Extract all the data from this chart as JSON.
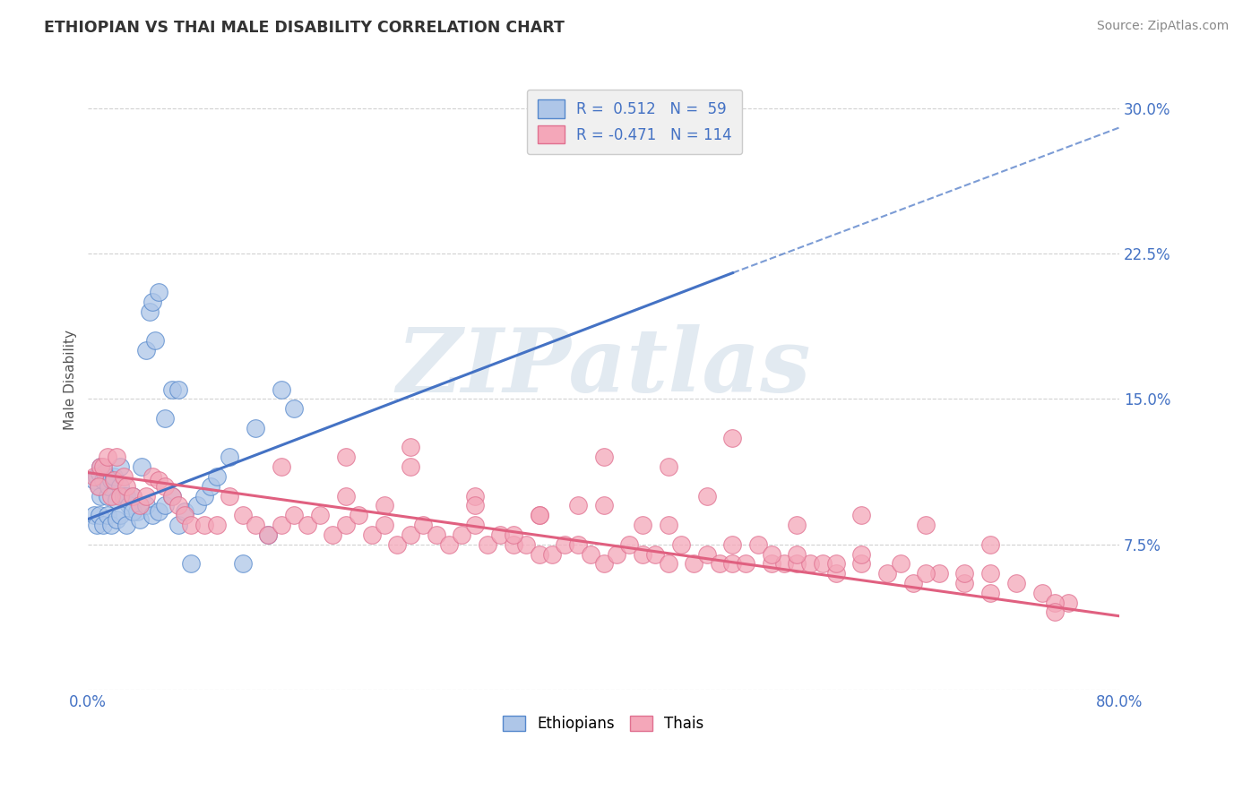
{
  "title": "ETHIOPIAN VS THAI MALE DISABILITY CORRELATION CHART",
  "source": "Source: ZipAtlas.com",
  "ylabel": "Male Disability",
  "xlim": [
    0.0,
    0.8
  ],
  "ylim": [
    0.0,
    0.32
  ],
  "yticks": [
    0.0,
    0.075,
    0.15,
    0.225,
    0.3
  ],
  "ytick_labels": [
    "",
    "7.5%",
    "15.0%",
    "22.5%",
    "30.0%"
  ],
  "xticks": [
    0.0,
    0.8
  ],
  "xtick_labels": [
    "0.0%",
    "80.0%"
  ],
  "ethiopian_color": "#aec6e8",
  "ethiopian_edge_color": "#5588cc",
  "thai_color": "#f4a7b9",
  "thai_edge_color": "#e07090",
  "ethiopian_line_color": "#4472c4",
  "thai_line_color": "#e06080",
  "background_color": "#ffffff",
  "grid_color": "#cccccc",
  "watermark_text": "ZIPatlas",
  "legend_box_color": "#f0f0f0",
  "title_color": "#333333",
  "axis_label_color": "#4472c4",
  "source_color": "#888888",
  "ethiopian_scatter_x": [
    0.005,
    0.007,
    0.008,
    0.009,
    0.01,
    0.01,
    0.012,
    0.013,
    0.015,
    0.016,
    0.018,
    0.02,
    0.022,
    0.025,
    0.025,
    0.028,
    0.03,
    0.032,
    0.035,
    0.038,
    0.04,
    0.042,
    0.045,
    0.048,
    0.05,
    0.052,
    0.055,
    0.06,
    0.065,
    0.07,
    0.005,
    0.007,
    0.009,
    0.012,
    0.015,
    0.018,
    0.022,
    0.025,
    0.03,
    0.035,
    0.04,
    0.045,
    0.05,
    0.055,
    0.06,
    0.065,
    0.07,
    0.075,
    0.08,
    0.085,
    0.09,
    0.095,
    0.1,
    0.11,
    0.12,
    0.13,
    0.14,
    0.15,
    0.16
  ],
  "ethiopian_scatter_y": [
    0.108,
    0.11,
    0.105,
    0.112,
    0.115,
    0.1,
    0.108,
    0.112,
    0.1,
    0.105,
    0.108,
    0.11,
    0.098,
    0.115,
    0.105,
    0.1,
    0.1,
    0.095,
    0.1,
    0.092,
    0.095,
    0.115,
    0.175,
    0.195,
    0.2,
    0.18,
    0.205,
    0.14,
    0.155,
    0.155,
    0.09,
    0.085,
    0.09,
    0.085,
    0.09,
    0.085,
    0.088,
    0.09,
    0.085,
    0.092,
    0.088,
    0.095,
    0.09,
    0.092,
    0.095,
    0.1,
    0.085,
    0.092,
    0.065,
    0.095,
    0.1,
    0.105,
    0.11,
    0.12,
    0.065,
    0.135,
    0.08,
    0.155,
    0.145
  ],
  "thai_scatter_x": [
    0.005,
    0.008,
    0.01,
    0.012,
    0.015,
    0.018,
    0.02,
    0.022,
    0.025,
    0.028,
    0.03,
    0.035,
    0.04,
    0.045,
    0.05,
    0.055,
    0.06,
    0.065,
    0.07,
    0.075,
    0.08,
    0.09,
    0.1,
    0.11,
    0.12,
    0.13,
    0.14,
    0.15,
    0.16,
    0.17,
    0.18,
    0.19,
    0.2,
    0.21,
    0.22,
    0.23,
    0.24,
    0.25,
    0.26,
    0.27,
    0.28,
    0.29,
    0.3,
    0.31,
    0.32,
    0.33,
    0.34,
    0.35,
    0.36,
    0.37,
    0.38,
    0.39,
    0.4,
    0.41,
    0.42,
    0.43,
    0.44,
    0.45,
    0.46,
    0.47,
    0.48,
    0.49,
    0.5,
    0.51,
    0.52,
    0.53,
    0.54,
    0.55,
    0.56,
    0.57,
    0.58,
    0.6,
    0.62,
    0.64,
    0.66,
    0.68,
    0.7,
    0.72,
    0.74,
    0.76,
    0.2,
    0.25,
    0.3,
    0.35,
    0.4,
    0.45,
    0.5,
    0.55,
    0.6,
    0.65,
    0.7,
    0.75,
    0.15,
    0.2,
    0.25,
    0.3,
    0.35,
    0.4,
    0.45,
    0.5,
    0.55,
    0.6,
    0.65,
    0.7,
    0.75,
    0.38,
    0.48,
    0.58,
    0.68,
    0.23,
    0.33,
    0.43,
    0.53,
    0.63
  ],
  "thai_scatter_y": [
    0.11,
    0.105,
    0.115,
    0.115,
    0.12,
    0.1,
    0.108,
    0.12,
    0.1,
    0.11,
    0.105,
    0.1,
    0.095,
    0.1,
    0.11,
    0.108,
    0.105,
    0.1,
    0.095,
    0.09,
    0.085,
    0.085,
    0.085,
    0.1,
    0.09,
    0.085,
    0.08,
    0.085,
    0.09,
    0.085,
    0.09,
    0.08,
    0.085,
    0.09,
    0.08,
    0.085,
    0.075,
    0.08,
    0.085,
    0.08,
    0.075,
    0.08,
    0.085,
    0.075,
    0.08,
    0.075,
    0.075,
    0.07,
    0.07,
    0.075,
    0.075,
    0.07,
    0.065,
    0.07,
    0.075,
    0.07,
    0.07,
    0.065,
    0.075,
    0.065,
    0.07,
    0.065,
    0.065,
    0.065,
    0.075,
    0.065,
    0.065,
    0.065,
    0.065,
    0.065,
    0.06,
    0.065,
    0.06,
    0.055,
    0.06,
    0.055,
    0.05,
    0.055,
    0.05,
    0.045,
    0.12,
    0.125,
    0.1,
    0.09,
    0.12,
    0.085,
    0.13,
    0.085,
    0.09,
    0.085,
    0.075,
    0.045,
    0.115,
    0.1,
    0.115,
    0.095,
    0.09,
    0.095,
    0.115,
    0.075,
    0.07,
    0.07,
    0.06,
    0.06,
    0.04,
    0.095,
    0.1,
    0.065,
    0.06,
    0.095,
    0.08,
    0.085,
    0.07,
    0.065
  ],
  "eth_trend_x0": 0.0,
  "eth_trend_y0": 0.088,
  "eth_trend_x1": 0.5,
  "eth_trend_y1": 0.215,
  "eth_trend_x2": 0.8,
  "eth_trend_y2": 0.29,
  "thai_trend_x0": 0.0,
  "thai_trend_y0": 0.112,
  "thai_trend_x1": 0.8,
  "thai_trend_y1": 0.038
}
